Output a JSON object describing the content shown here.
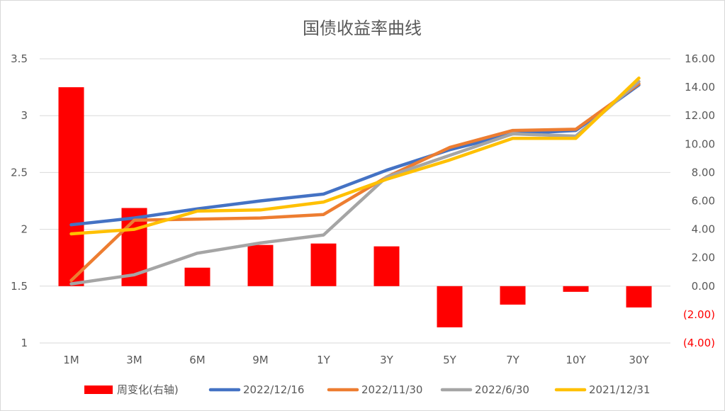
{
  "chart_data": {
    "type": "bar+line",
    "title": "国债收益率曲线",
    "categories": [
      "1M",
      "3M",
      "6M",
      "9M",
      "1Y",
      "3Y",
      "5Y",
      "7Y",
      "10Y",
      "30Y"
    ],
    "left_axis": {
      "ylim": [
        1,
        3.5
      ],
      "ticks": [
        1,
        1.5,
        2,
        2.5,
        3,
        3.5
      ],
      "tick_labels": [
        "1",
        "1.5",
        "2",
        "2.5",
        "3",
        "3.5"
      ]
    },
    "right_axis": {
      "ylim": [
        -4,
        16
      ],
      "ticks": [
        -4,
        -2,
        0,
        2,
        4,
        6,
        8,
        10,
        12,
        14,
        16
      ],
      "tick_labels": [
        "(4.00)",
        "(2.00)",
        "0.00",
        "2.00",
        "4.00",
        "6.00",
        "8.00",
        "10.00",
        "12.00",
        "14.00",
        "16.00"
      ],
      "negative_color": "#ff0000"
    },
    "grid": true,
    "legend_position": "bottom",
    "bar_series": {
      "name": "周变化(右轴)",
      "axis": "right",
      "color": "#ff0000",
      "values": [
        14.0,
        5.5,
        1.3,
        2.9,
        3.0,
        2.8,
        -2.9,
        -1.3,
        -0.4,
        -1.5
      ]
    },
    "series": [
      {
        "name": "2022/12/16",
        "axis": "left",
        "color": "#4472c4",
        "values": [
          2.04,
          2.1,
          2.18,
          2.25,
          2.31,
          2.52,
          2.7,
          2.84,
          2.87,
          3.27
        ]
      },
      {
        "name": "2022/11/30",
        "axis": "left",
        "color": "#ed7d31",
        "values": [
          1.55,
          2.08,
          2.09,
          2.1,
          2.13,
          2.46,
          2.72,
          2.87,
          2.88,
          3.28
        ]
      },
      {
        "name": "2022/6/30",
        "axis": "left",
        "color": "#a5a5a5",
        "values": [
          1.52,
          1.6,
          1.79,
          1.88,
          1.95,
          2.46,
          2.65,
          2.84,
          2.82,
          3.3
        ]
      },
      {
        "name": "2021/12/31",
        "axis": "left",
        "color": "#ffc000",
        "values": [
          1.96,
          2.0,
          2.16,
          2.17,
          2.24,
          2.44,
          2.61,
          2.8,
          2.8,
          3.33
        ]
      }
    ]
  }
}
